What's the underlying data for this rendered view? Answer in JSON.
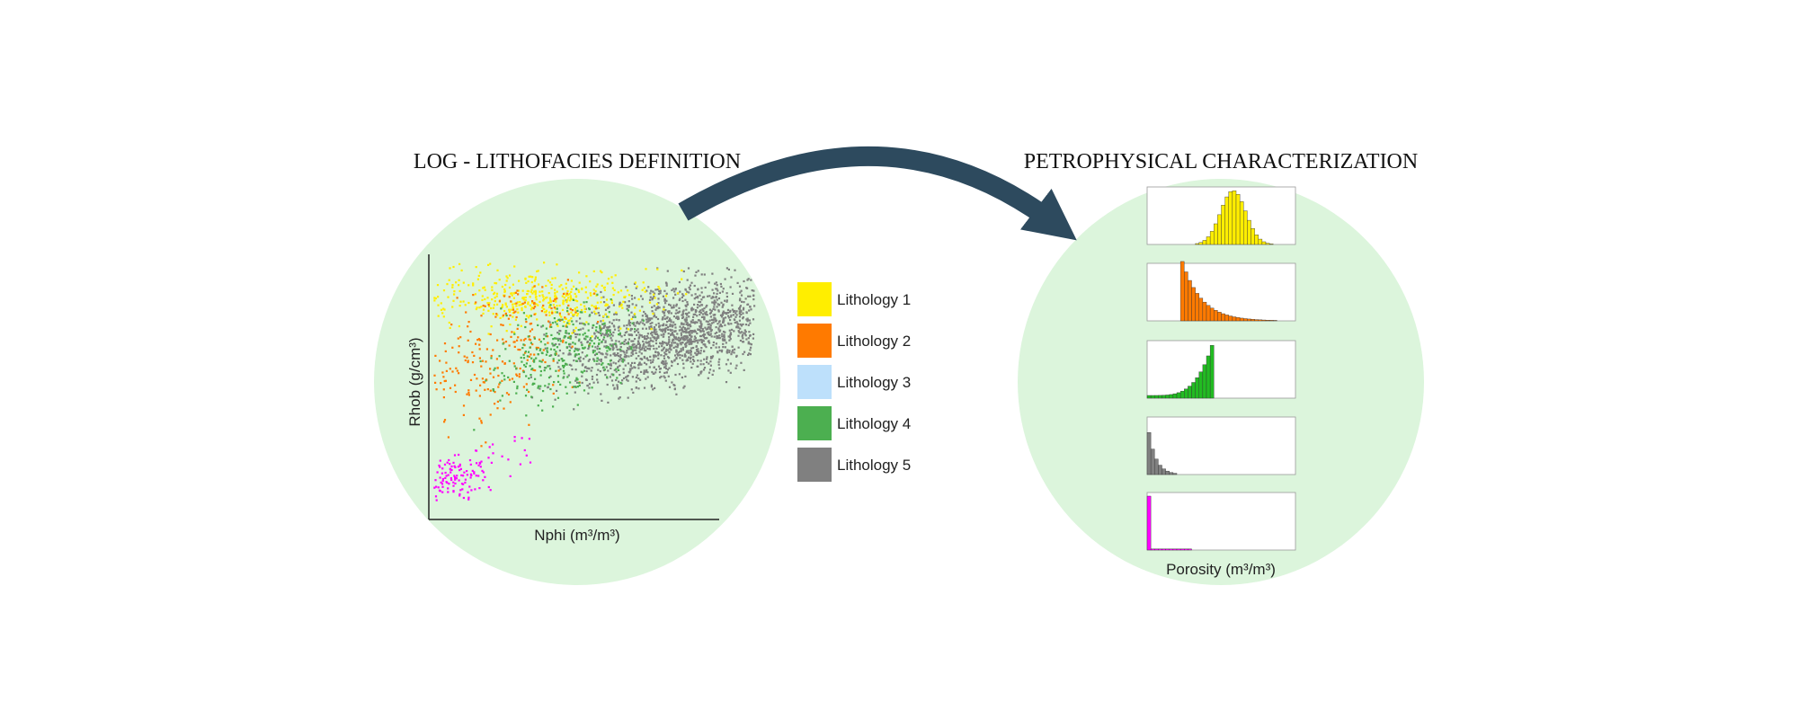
{
  "left_panel": {
    "title": "LOG - LITHOFACIES DEFINITION",
    "x_axis_label": "Nphi (m³/m³)",
    "y_axis_label": "Rhob (g/cm³)"
  },
  "legend": [
    {
      "label": "Lithology 1",
      "color": "#ffee00"
    },
    {
      "label": "Lithology 2",
      "color": "#ff7a00"
    },
    {
      "label": "Lithology 3",
      "color": "#bde0fb"
    },
    {
      "label": "Lithology 4",
      "color": "#4caf50"
    },
    {
      "label": "Lithology 5",
      "color": "#808080"
    }
  ],
  "right_panel": {
    "title": "PETROPHYSICAL CHARACTERIZATION",
    "x_axis_label": "Porosity (m³/m³)"
  }
}
